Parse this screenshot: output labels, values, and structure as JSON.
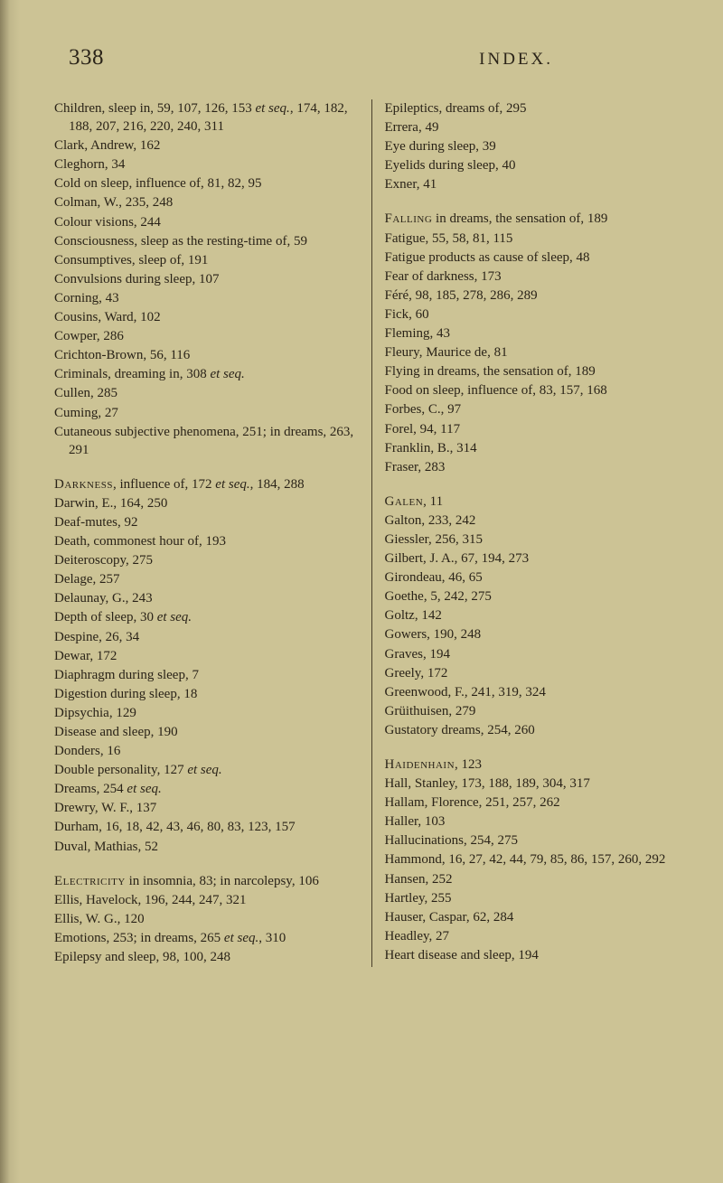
{
  "header": {
    "page_number": "338",
    "title": "INDEX."
  },
  "left_column": [
    {
      "html": "Children, sleep in, 59, 107, 126, 153 <em>et seq.</em>, 174, 182, 188, 207, 216, 220, 240, 311",
      "head": true
    },
    {
      "html": "Clark, Andrew, 162"
    },
    {
      "html": "Cleghorn, 34"
    },
    {
      "html": "Cold on sleep, influence of, 81, 82, 95"
    },
    {
      "html": "Colman, W., 235, 248"
    },
    {
      "html": "Colour visions, 244"
    },
    {
      "html": "Consciousness, sleep as the resting-time of, 59"
    },
    {
      "html": "Consumptives, sleep of, 191"
    },
    {
      "html": "Convulsions during sleep, 107"
    },
    {
      "html": "Corning, 43"
    },
    {
      "html": "Cousins, Ward, 102"
    },
    {
      "html": "Cowper, 286"
    },
    {
      "html": "Crichton-Brown, 56, 116"
    },
    {
      "html": "Criminals, dreaming in, 308 <em>et seq.</em>"
    },
    {
      "html": "Cullen, 285"
    },
    {
      "html": "Cuming, 27"
    },
    {
      "html": "Cutaneous subjective phenomena, 251; in dreams, 263, 291"
    },
    {
      "html": "<span class=\"smallcaps\">Darkness</span>, influence of, 172 <em>et seq.</em>, 184, 288",
      "head": true
    },
    {
      "html": "Darwin, E., 164, 250"
    },
    {
      "html": "Deaf-mutes, 92"
    },
    {
      "html": "Death, commonest hour of, 193"
    },
    {
      "html": "Deiteroscopy, 275"
    },
    {
      "html": "Delage, 257"
    },
    {
      "html": "Delaunay, G., 243"
    },
    {
      "html": "Depth of sleep, 30 <em>et seq.</em>"
    },
    {
      "html": "Despine, 26, 34"
    },
    {
      "html": "Dewar, 172"
    },
    {
      "html": "Diaphragm during sleep, 7"
    },
    {
      "html": "Digestion during sleep, 18"
    },
    {
      "html": "Dipsychia, 129"
    },
    {
      "html": "Disease and sleep, 190"
    },
    {
      "html": "Donders, 16"
    },
    {
      "html": "Double personality, 127 <em>et seq.</em>"
    },
    {
      "html": "Dreams, 254 <em>et seq.</em>"
    },
    {
      "html": "Drewry, W. F., 137"
    },
    {
      "html": "Durham, 16, 18, 42, 43, 46, 80, 83, 123, 157"
    },
    {
      "html": "Duval, Mathias, 52"
    },
    {
      "html": "<span class=\"smallcaps\">Electricity</span> in insomnia, 83; in narcolepsy, 106",
      "head": true
    },
    {
      "html": "Ellis, Havelock, 196, 244, 247, 321"
    },
    {
      "html": "Ellis, W. G., 120"
    },
    {
      "html": "Emotions, 253; in dreams, 265 <em>et seq.</em>, 310"
    },
    {
      "html": "Epilepsy and sleep, 98, 100, 248"
    }
  ],
  "right_column": [
    {
      "html": "Epileptics, dreams of, 295",
      "head": true
    },
    {
      "html": "Errera, 49"
    },
    {
      "html": "Eye during sleep, 39"
    },
    {
      "html": "Eyelids during sleep, 40"
    },
    {
      "html": "Exner, 41"
    },
    {
      "html": "<span class=\"smallcaps\">Falling</span> in dreams, the sensation of, 189",
      "head": true
    },
    {
      "html": "Fatigue, 55, 58, 81, 115"
    },
    {
      "html": "Fatigue products as cause of sleep, 48"
    },
    {
      "html": "Fear of darkness, 173"
    },
    {
      "html": "Féré, 98, 185, 278, 286, 289"
    },
    {
      "html": "Fick, 60"
    },
    {
      "html": "Fleming, 43"
    },
    {
      "html": "Fleury, Maurice de, 81"
    },
    {
      "html": "Flying in dreams, the sensation of, 189"
    },
    {
      "html": "Food on sleep, influence of, 83, 157, 168"
    },
    {
      "html": "Forbes, C., 97"
    },
    {
      "html": "Forel, 94, 117"
    },
    {
      "html": "Franklin, B., 314"
    },
    {
      "html": "Fraser, 283"
    },
    {
      "html": "<span class=\"smallcaps\">Galen</span>, 11",
      "head": true
    },
    {
      "html": "Galton, 233, 242"
    },
    {
      "html": "Giessler, 256, 315"
    },
    {
      "html": "Gilbert, J. A., 67, 194, 273"
    },
    {
      "html": "Girondeau, 46, 65"
    },
    {
      "html": "Goethe, 5, 242, 275"
    },
    {
      "html": "Goltz, 142"
    },
    {
      "html": "Gowers, 190, 248"
    },
    {
      "html": "Graves, 194"
    },
    {
      "html": "Greely, 172"
    },
    {
      "html": "Greenwood, F., 241, 319, 324"
    },
    {
      "html": "Grüithuisen, 279"
    },
    {
      "html": "Gustatory dreams, 254, 260"
    },
    {
      "html": "<span class=\"smallcaps\">Haidenhain</span>, 123",
      "head": true
    },
    {
      "html": "Hall, Stanley, 173, 188, 189, 304, 317"
    },
    {
      "html": "Hallam, Florence, 251, 257, 262"
    },
    {
      "html": "Haller, 103"
    },
    {
      "html": "Hallucinations, 254, 275"
    },
    {
      "html": "Hammond, 16, 27, 42, 44, 79, 85, 86, 157, 260, 292"
    },
    {
      "html": "Hansen, 252"
    },
    {
      "html": "Hartley, 255"
    },
    {
      "html": "Hauser, Caspar, 62, 284"
    },
    {
      "html": "Headley, 27"
    },
    {
      "html": "Heart disease and sleep, 194"
    }
  ]
}
